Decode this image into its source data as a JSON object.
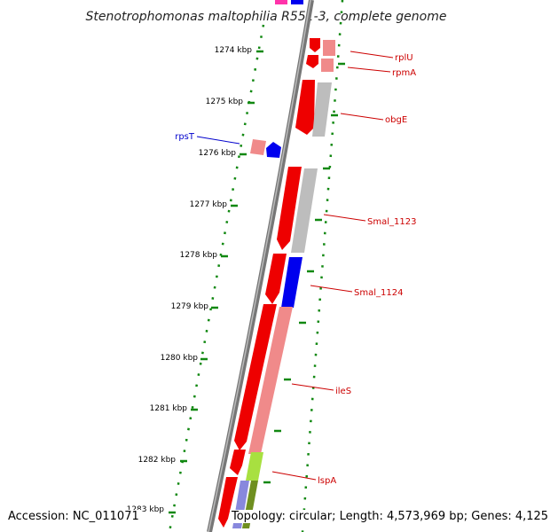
{
  "title": "Stenotrophomonas maltophilia R551-3, complete genome",
  "footer": {
    "accession": "Accession: NC_011071",
    "topology": "Topology: circular; Length: 4,573,969 bp; Genes: 4,125"
  },
  "ticks": [
    "1274 kbp",
    "1275 kbp",
    "1276 kbp",
    "1277 kbp",
    "1278 kbp",
    "1279 kbp",
    "1280 kbp",
    "1281 kbp",
    "1282 kbp",
    "1283 kbp"
  ],
  "colors": {
    "cds_red": "#ee0000",
    "cds_pink": "#f08a8a",
    "cds_grey": "#bdbdbd",
    "cds_blue": "#0000ee",
    "cds_lime": "#a8e040",
    "cds_olive": "#6f8f20",
    "cds_lavender": "#8888dd",
    "leader_red": "#cc0000",
    "leader_blue": "#0000cc",
    "backbone": "#808080",
    "dotted_ring": "#118811",
    "top_magenta": "#ff33aa"
  },
  "genes": [
    {
      "name": "rplU",
      "color": "#cc0000"
    },
    {
      "name": "rpmA",
      "color": "#cc0000"
    },
    {
      "name": "obgE",
      "color": "#cc0000"
    },
    {
      "name": "rpsT",
      "color": "#0000cc"
    },
    {
      "name": "Smal_1123",
      "color": "#cc0000"
    },
    {
      "name": "Smal_1124",
      "color": "#cc0000"
    },
    {
      "name": "ileS",
      "color": "#cc0000"
    },
    {
      "name": "lspA",
      "color": "#cc0000"
    }
  ]
}
